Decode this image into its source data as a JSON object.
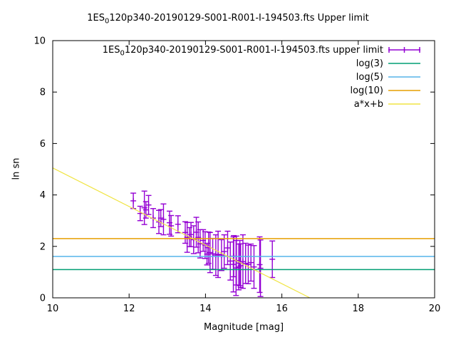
{
  "title_parts": {
    "prefix": "1ES",
    "sub": "0",
    "rest": "120p340-20190129-S001-R001-I-194503.fts Upper limit"
  },
  "chart_data": {
    "type": "scatter",
    "title": "1ES₀120p340-20190129-S001-R001-I-194503.fts Upper limit",
    "xlabel": "Magnitude [mag]",
    "ylabel": "ln sn",
    "xlim": [
      10,
      20
    ],
    "ylim": [
      0,
      10
    ],
    "xticks": [
      10,
      12,
      14,
      16,
      18,
      20
    ],
    "yticks": [
      0,
      2,
      4,
      6,
      8,
      10
    ],
    "grid": false,
    "legend_position": "inside-top-right",
    "background": "#ffffff",
    "border_color": "#000000",
    "series": [
      {
        "id": "upper_limit",
        "name": "1ES₀120p340-20190129-S001-R001-I-194503.fts upper limit",
        "name_parts": {
          "prefix": "1ES",
          "sub": "0",
          "rest": "120p340-20190129-S001-R001-I-194503.fts upper limit"
        },
        "type": "points-yerrorbars",
        "marker": "plus",
        "color": "#9400D3",
        "points": [
          [
            12.11,
            3.77,
            0.3
          ],
          [
            12.29,
            3.28,
            0.28
          ],
          [
            12.4,
            3.5,
            0.65
          ],
          [
            12.44,
            3.42,
            0.32
          ],
          [
            12.51,
            3.61,
            0.37
          ],
          [
            12.63,
            3.1,
            0.37
          ],
          [
            12.78,
            2.95,
            0.45
          ],
          [
            12.83,
            3.1,
            0.33
          ],
          [
            12.9,
            3.05,
            0.6
          ],
          [
            13.06,
            2.92,
            0.45
          ],
          [
            13.1,
            2.8,
            0.4
          ],
          [
            13.28,
            2.86,
            0.33
          ],
          [
            13.47,
            2.54,
            0.42
          ],
          [
            13.52,
            2.35,
            0.58
          ],
          [
            13.58,
            2.36,
            0.37
          ],
          [
            13.62,
            2.46,
            0.47
          ],
          [
            13.69,
            2.26,
            0.54
          ],
          [
            13.76,
            2.55,
            0.58
          ],
          [
            13.81,
            2.35,
            0.6
          ],
          [
            13.86,
            2.1,
            0.55
          ],
          [
            13.94,
            2.23,
            0.42
          ],
          [
            13.99,
            2.05,
            0.52
          ],
          [
            14.04,
            1.7,
            0.42
          ],
          [
            14.08,
            1.95,
            0.61
          ],
          [
            14.12,
            1.76,
            0.78
          ],
          [
            14.19,
            1.71,
            0.6
          ],
          [
            14.27,
            1.66,
            0.79
          ],
          [
            14.33,
            1.69,
            0.9
          ],
          [
            14.42,
            1.66,
            0.6
          ],
          [
            14.49,
            1.8,
            0.65
          ],
          [
            14.58,
            1.94,
            0.65
          ],
          [
            14.65,
            1.43,
            0.74
          ],
          [
            14.73,
            1.3,
            1.07
          ],
          [
            14.74,
            1.62,
            0.8
          ],
          [
            14.8,
            1.16,
            1.07
          ],
          [
            14.81,
            1.45,
            0.95
          ],
          [
            14.87,
            1.2,
            0.89
          ],
          [
            14.9,
            1.35,
            0.88
          ],
          [
            14.92,
            1.25,
            0.85
          ],
          [
            14.98,
            1.41,
            1.04
          ],
          [
            15.05,
            1.34,
            0.78
          ],
          [
            15.12,
            1.3,
            0.75
          ],
          [
            15.19,
            1.37,
            0.72
          ],
          [
            15.27,
            1.2,
            0.83
          ],
          [
            15.42,
            1.29,
            1.08
          ],
          [
            15.44,
            1.15,
            1.1
          ],
          [
            15.75,
            1.5,
            0.71
          ]
        ]
      },
      {
        "id": "log3",
        "name": "log(3)",
        "type": "hline",
        "y": 1.0986,
        "color": "#009E73"
      },
      {
        "id": "log5",
        "name": "log(5)",
        "type": "hline",
        "y": 1.6094,
        "color": "#56B4E9"
      },
      {
        "id": "log10",
        "name": "log(10)",
        "type": "hline",
        "y": 2.3026,
        "color": "#E69F00"
      },
      {
        "id": "fit",
        "name": "a*x+b",
        "type": "linear",
        "a": -0.75,
        "b": 12.55,
        "color": "#F0E442"
      }
    ]
  }
}
